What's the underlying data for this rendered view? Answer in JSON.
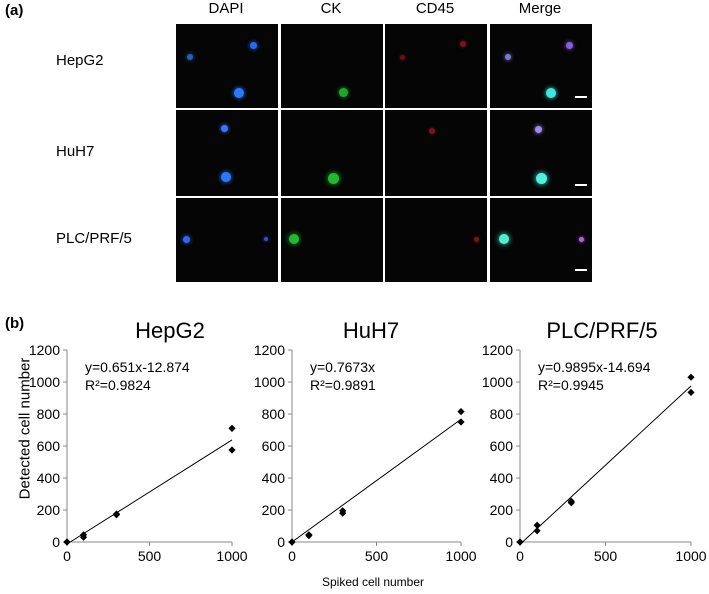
{
  "panel_a": {
    "label": "(a)",
    "columns": [
      "DAPI",
      "CK",
      "CD45",
      "Merge"
    ],
    "rows": [
      "HepG2",
      "HuH7",
      "PLC/PRF/5"
    ]
  },
  "panel_b": {
    "label": "(b)",
    "ylabel": "Detected cell number",
    "xlabel": "Spiked cell number"
  },
  "chart_data": [
    {
      "type": "scatter",
      "title": "HepG2",
      "equation": "y=0.651x-12.874",
      "r2": "R²=0.9824",
      "x": [
        0,
        0,
        100,
        100,
        300,
        300,
        1000,
        1000
      ],
      "y": [
        0,
        0,
        30,
        45,
        175,
        170,
        710,
        575
      ],
      "fit": {
        "slope": 0.651,
        "intercept": -12.874
      },
      "xlim": [
        0,
        1000
      ],
      "ylim": [
        0,
        1200
      ],
      "xticks": [
        0,
        500,
        1000
      ],
      "yticks": [
        0,
        200,
        400,
        600,
        800,
        1000,
        1200
      ]
    },
    {
      "type": "scatter",
      "title": "HuH7",
      "equation": "y=0.7673x",
      "r2": "R²=0.9891",
      "x": [
        0,
        0,
        100,
        100,
        300,
        300,
        1000,
        1000
      ],
      "y": [
        0,
        0,
        40,
        45,
        180,
        195,
        815,
        750
      ],
      "fit": {
        "slope": 0.7673,
        "intercept": 0
      },
      "xlim": [
        0,
        1000
      ],
      "ylim": [
        0,
        1200
      ],
      "xticks": [
        0,
        500,
        1000
      ],
      "yticks": [
        0,
        200,
        400,
        600,
        800,
        1000,
        1200
      ]
    },
    {
      "type": "scatter",
      "title": "PLC/PRF/5",
      "equation": "y=0.9895x-14.694",
      "r2": "R²=0.9945",
      "x": [
        0,
        0,
        100,
        100,
        300,
        300,
        1000,
        1000
      ],
      "y": [
        0,
        0,
        70,
        105,
        245,
        255,
        1030,
        935
      ],
      "fit": {
        "slope": 0.9895,
        "intercept": -14.694
      },
      "xlim": [
        0,
        1000
      ],
      "ylim": [
        0,
        1200
      ],
      "xticks": [
        0,
        500,
        1000
      ],
      "yticks": [
        0,
        200,
        400,
        600,
        800,
        1000,
        1200
      ]
    }
  ]
}
